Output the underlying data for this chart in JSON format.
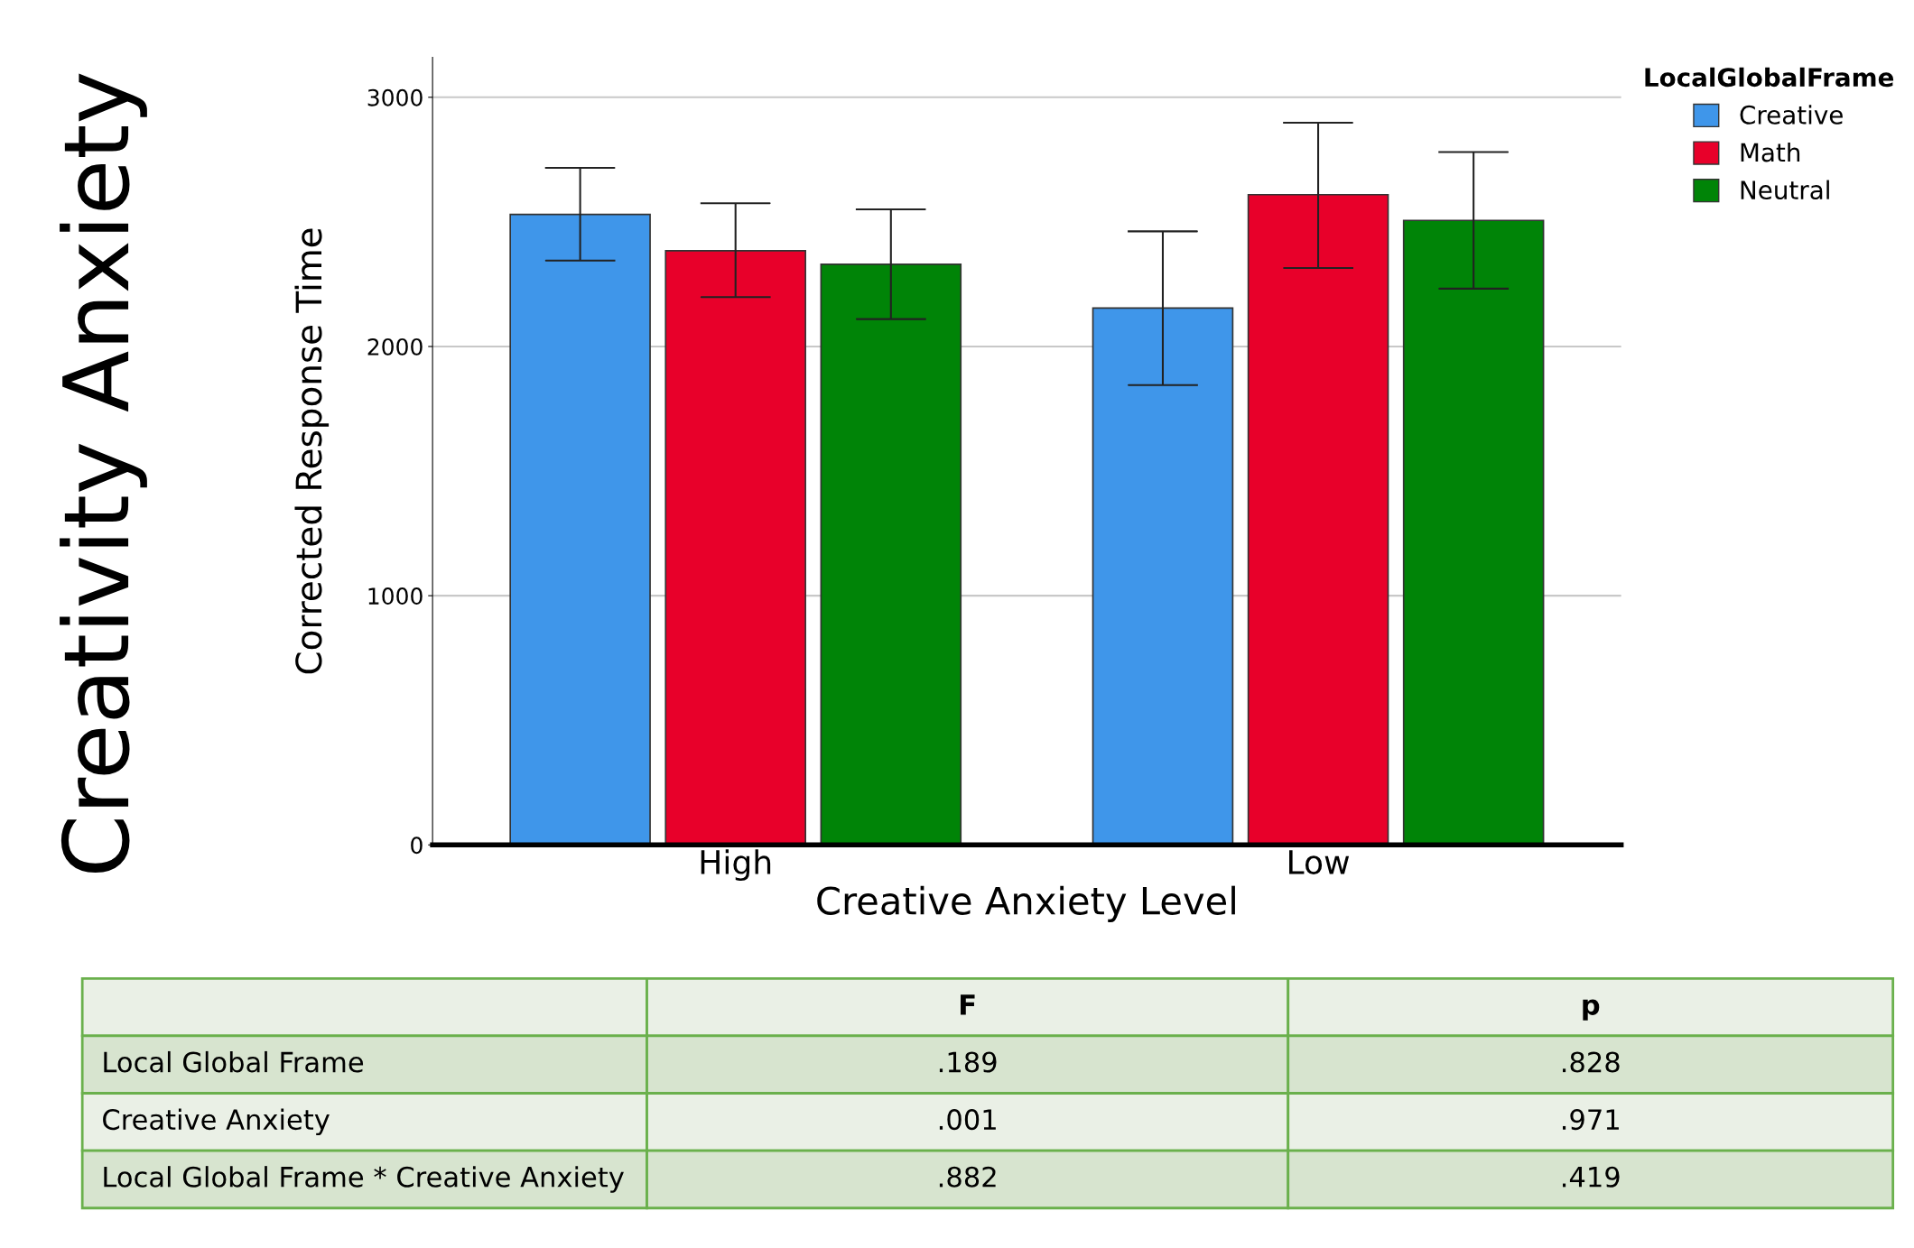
{
  "chart_data": {
    "type": "bar",
    "title": "Creativity Anxiety",
    "xlabel": "Creative Anxiety Level",
    "ylabel": "Corrected Response Time",
    "legend_title": "LocalGlobalFrame",
    "categories": [
      "High",
      "Low"
    ],
    "series": [
      {
        "name": "Creative",
        "color": "#3f96ea",
        "values": [
          2530,
          2154
        ],
        "errors": [
          [
            2345,
            2717
          ],
          [
            1845,
            2462
          ]
        ]
      },
      {
        "name": "Math",
        "color": "#e8002a",
        "values": [
          2384,
          2609
        ],
        "errors": [
          [
            2198,
            2575
          ],
          [
            2315,
            2898
          ]
        ]
      },
      {
        "name": "Neutral",
        "color": "#008407",
        "values": [
          2330,
          2506
        ],
        "errors": [
          [
            2110,
            2550
          ],
          [
            2232,
            2780
          ]
        ]
      }
    ],
    "ylim": [
      0,
      3160
    ],
    "yticks": [
      0,
      1000,
      2000,
      3000
    ],
    "grid": "y",
    "legend": "top right",
    "annotations": [
      "F",
      "p",
      "Local Global Frame",
      ".189",
      ".828",
      "Creative Anxiety",
      ".001",
      ".971",
      "Local Global Frame * Creative Anxiety",
      ".882",
      ".419"
    ]
  }
}
